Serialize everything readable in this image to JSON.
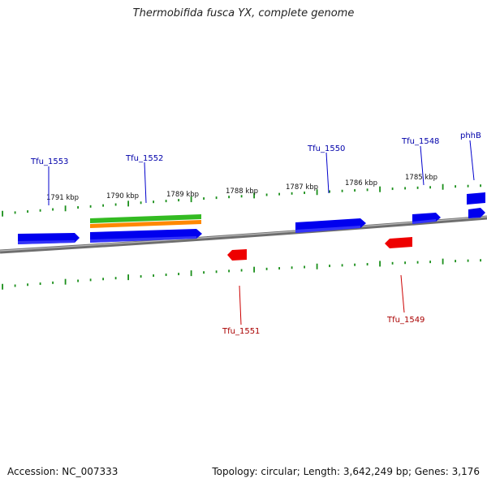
{
  "title": "Thermobifida fusca YX, complete genome",
  "footer": {
    "accession": "Accession: NC_007333",
    "stats": "Topology: circular; Length: 3,642,249 bp; Genes: 3,176"
  },
  "colors": {
    "backbone": "#888888",
    "ticks": "#1a8f1a",
    "forward_gene": "#0000ee",
    "reverse_gene": "#ee0000",
    "feature_green": "#33bb22",
    "feature_orange": "#ff8800"
  },
  "scale": {
    "unit": "kbp",
    "labels": [
      "1791 kbp",
      "1790 kbp",
      "1789 kbp",
      "1788 kbp",
      "1787 kbp",
      "1786 kbp",
      "1785 kbp"
    ]
  },
  "genes": [
    {
      "name": "Tfu_1553",
      "strand": "forward"
    },
    {
      "name": "Tfu_1552",
      "strand": "forward"
    },
    {
      "name": "Tfu_1550",
      "strand": "forward"
    },
    {
      "name": "Tfu_1548",
      "strand": "forward"
    },
    {
      "name": "phhB",
      "strand": "forward"
    },
    {
      "name": "Tfu_1551",
      "strand": "reverse"
    },
    {
      "name": "Tfu_1549",
      "strand": "reverse"
    }
  ]
}
